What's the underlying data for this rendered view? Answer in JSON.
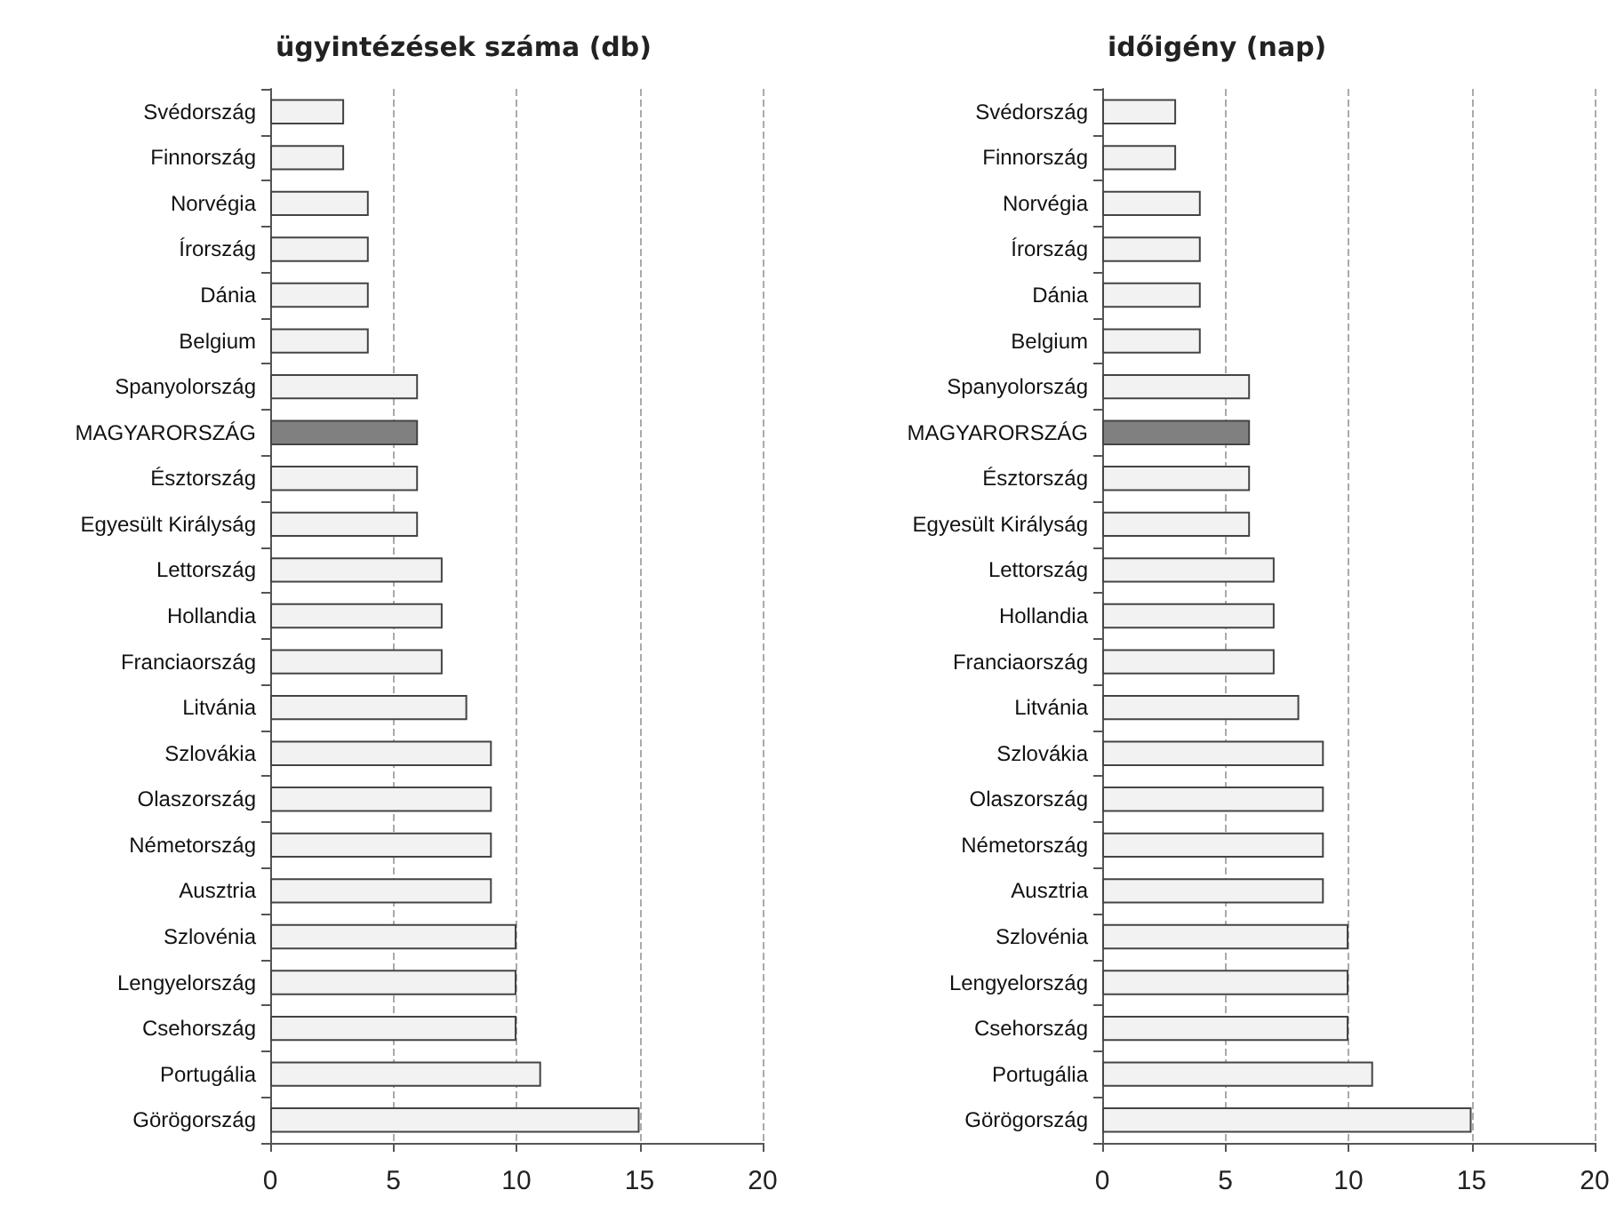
{
  "chart_data": [
    {
      "type": "bar",
      "orientation": "horizontal",
      "title": "ügyintézések száma (db)",
      "categories": [
        "Svédország",
        "Finnország",
        "Norvégia",
        "Írország",
        "Dánia",
        "Belgium",
        "Spanyolország",
        "MAGYARORSZÁG",
        "Észtország",
        "Egyesült Királyság",
        "Lettország",
        "Hollandia",
        "Franciaország",
        "Litvánia",
        "Szlovákia",
        "Olaszország",
        "Németország",
        "Ausztria",
        "Szlovénia",
        "Lengyelország",
        "Csehország",
        "Portugália",
        "Görögország"
      ],
      "values": [
        3,
        3,
        4,
        4,
        4,
        4,
        6,
        6,
        6,
        6,
        7,
        7,
        7,
        8,
        9,
        9,
        9,
        9,
        10,
        10,
        10,
        11,
        15
      ],
      "colors": [
        "#f2f2f2",
        "#f2f2f2",
        "#f2f2f2",
        "#f2f2f2",
        "#f2f2f2",
        "#f2f2f2",
        "#f2f2f2",
        "#808080",
        "#f2f2f2",
        "#f2f2f2",
        "#f2f2f2",
        "#f2f2f2",
        "#f2f2f2",
        "#f2f2f2",
        "#f2f2f2",
        "#f2f2f2",
        "#f2f2f2",
        "#f2f2f2",
        "#f2f2f2",
        "#f2f2f2",
        "#f2f2f2",
        "#f2f2f2",
        "#f2f2f2"
      ],
      "xlim": [
        0,
        20
      ],
      "xticks": [
        0,
        5,
        10,
        15,
        20
      ],
      "grid": "x"
    },
    {
      "type": "bar",
      "orientation": "horizontal",
      "title": "időigény (nap)",
      "categories": [
        "Svédország",
        "Finnország",
        "Norvégia",
        "Írország",
        "Dánia",
        "Belgium",
        "Spanyolország",
        "MAGYARORSZÁG",
        "Észtország",
        "Egyesült Királyság",
        "Lettország",
        "Hollandia",
        "Franciaország",
        "Litvánia",
        "Szlovákia",
        "Olaszország",
        "Németország",
        "Ausztria",
        "Szlovénia",
        "Lengyelország",
        "Csehország",
        "Portugália",
        "Görögország"
      ],
      "values": [
        3,
        3,
        4,
        4,
        4,
        4,
        6,
        6,
        6,
        6,
        7,
        7,
        7,
        8,
        9,
        9,
        9,
        9,
        10,
        10,
        10,
        11,
        15
      ],
      "colors": [
        "#f2f2f2",
        "#f2f2f2",
        "#f2f2f2",
        "#f2f2f2",
        "#f2f2f2",
        "#f2f2f2",
        "#f2f2f2",
        "#808080",
        "#f2f2f2",
        "#f2f2f2",
        "#f2f2f2",
        "#f2f2f2",
        "#f2f2f2",
        "#f2f2f2",
        "#f2f2f2",
        "#f2f2f2",
        "#f2f2f2",
        "#f2f2f2",
        "#f2f2f2",
        "#f2f2f2",
        "#f2f2f2",
        "#f2f2f2",
        "#f2f2f2"
      ],
      "xlim": [
        0,
        20
      ],
      "xticks": [
        0,
        5,
        10,
        15,
        20
      ],
      "grid": "x"
    }
  ]
}
